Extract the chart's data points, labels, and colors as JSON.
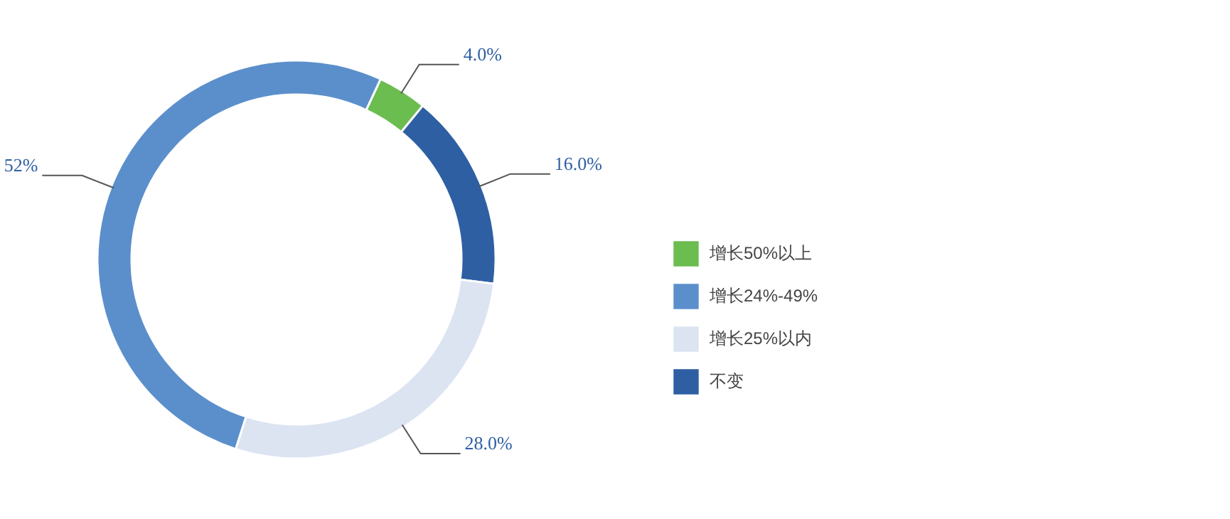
{
  "chart_data": {
    "type": "donut",
    "categories": [
      "增长50%以上",
      "增长24%-49%",
      "增长25%以内",
      "不变"
    ],
    "values": [
      4.0,
      52,
      28.0,
      16.0
    ],
    "colors": [
      "#6bbd4f",
      "#5b8fcb",
      "#dce4f2",
      "#2e5fa3"
    ],
    "value_labels": [
      "4.0%",
      "52%",
      "28.0%",
      "16.0%"
    ],
    "legend": "right"
  }
}
